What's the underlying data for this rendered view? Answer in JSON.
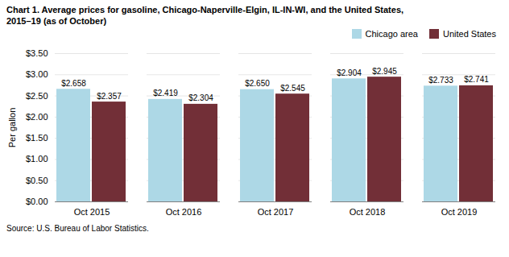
{
  "chart_data": {
    "type": "bar",
    "title": "Chart 1. Average prices for gasoline, Chicago-Naperville-Elgin, IL-IN-WI, and the United States,\n2015–19  (as of October)",
    "caption": "Source: U.S. Bureau of Labor Statistics.",
    "ylabel": "Per gallon",
    "categories": [
      "Oct 2015",
      "Oct 2016",
      "Oct 2017",
      "Oct 2018",
      "Oct 2019"
    ],
    "series": [
      {
        "name": "Chicago area",
        "color": "#ADD8E6",
        "values": [
          2.658,
          2.419,
          2.65,
          2.904,
          2.733
        ],
        "value_labels": [
          "$2.658",
          "$2.419",
          "$2.650",
          "$2.904",
          "$2.733"
        ]
      },
      {
        "name": "United States",
        "color": "#722F37",
        "values": [
          2.357,
          2.304,
          2.545,
          2.945,
          2.741
        ],
        "value_labels": [
          "$2.357",
          "$2.304",
          "$2.545",
          "$2.945",
          "$2.741"
        ]
      }
    ],
    "ylim": [
      0,
      3.5
    ],
    "yticks": [
      {
        "value": 0.0,
        "label": "$0.00"
      },
      {
        "value": 0.5,
        "label": "$0.50"
      },
      {
        "value": 1.0,
        "label": "$1.00"
      },
      {
        "value": 1.5,
        "label": "$1.50"
      },
      {
        "value": 2.0,
        "label": "$2.00"
      },
      {
        "value": 2.5,
        "label": "$2.50"
      },
      {
        "value": 3.0,
        "label": "$3.00"
      },
      {
        "value": 3.5,
        "label": "$3.50"
      }
    ],
    "grid": true,
    "legend": "upper right",
    "data_labels": true
  }
}
